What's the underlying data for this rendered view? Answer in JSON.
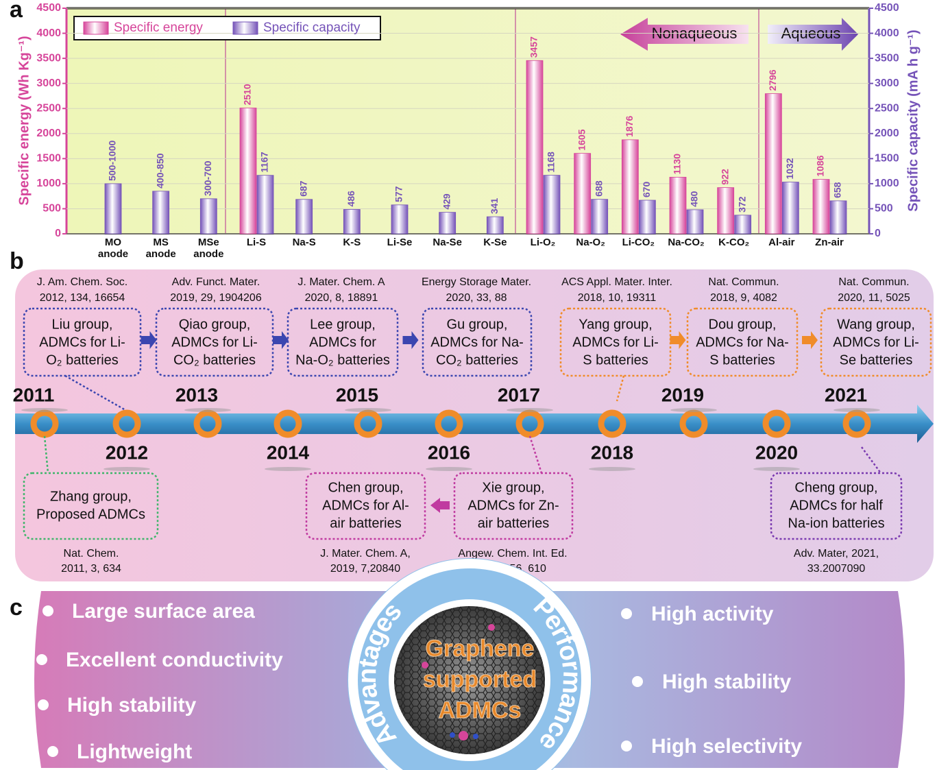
{
  "chart_data": {
    "type": "bar",
    "panel_label": "a",
    "categories": [
      "MO anode",
      "MS anode",
      "MSe anode",
      "Li-S",
      "Na-S",
      "K-S",
      "Li-Se",
      "Na-Se",
      "K-Se",
      "Li-O₂",
      "Na-O₂",
      "Li-CO₂",
      "Na-CO₂",
      "K-CO₂",
      "Al-air",
      "Zn-air"
    ],
    "series": [
      {
        "name": "Specific energy",
        "color": "#d6459a",
        "values": [
          null,
          null,
          null,
          2510,
          null,
          null,
          null,
          null,
          null,
          3457,
          1605,
          1876,
          1130,
          922,
          2796,
          1086
        ]
      },
      {
        "name": "Specific capacity",
        "color": "#7553b8",
        "axis": "y2",
        "values": [
          1000,
          850,
          700,
          1167,
          687,
          486,
          577,
          429,
          341,
          1168,
          688,
          670,
          480,
          372,
          1032,
          658
        ],
        "value_labels": [
          "500-1000",
          "400-850",
          "300-700",
          null,
          null,
          null,
          null,
          null,
          null,
          null,
          null,
          null,
          null,
          null,
          null,
          null
        ]
      }
    ],
    "y_label": "Specific energy (Wh Kg⁻¹)",
    "y2_label": "Specific capacity (mA h g⁻¹)",
    "ylim": [
      0,
      4500
    ],
    "yticks": [
      0,
      500,
      1000,
      1500,
      2000,
      2500,
      3000,
      3500,
      4000,
      4500
    ],
    "y2lim": [
      0,
      4500
    ],
    "y2ticks": [
      0,
      500,
      1000,
      1500,
      2000,
      2500,
      3000,
      3500,
      4000,
      4500
    ],
    "grid": true,
    "legend": "upper left",
    "annotations": [
      "Nonaqueous",
      "Aqueous"
    ]
  },
  "timeline": {
    "panel_label": "b",
    "years": [
      2011,
      2012,
      2013,
      2014,
      2015,
      2016,
      2017,
      2018,
      2019,
      2020,
      2021
    ],
    "top_events": [
      {
        "reference": [
          "J. Am. Chem. Soc.",
          "2012, 134, 16654"
        ],
        "text": [
          "Liu group,",
          "ADMCs for Li-",
          "O₂ batteries"
        ]
      },
      {
        "reference": [
          "Adv. Funct. Mater.",
          "2019, 29, 1904206"
        ],
        "text": [
          "Qiao group,",
          "ADMCs for Li-",
          "CO₂ batteries"
        ]
      },
      {
        "reference": [
          "J. Mater. Chem. A",
          "2020, 8, 18891"
        ],
        "text": [
          "Lee group,",
          "ADMCs for",
          "Na-O₂ batteries"
        ]
      },
      {
        "reference": [
          "Energy Storage Mater.",
          "2020, 33, 88"
        ],
        "text": [
          "Gu group,",
          "ADMCs for Na-",
          "CO₂ batteries"
        ]
      },
      {
        "reference": [
          "ACS Appl. Mater. Inter.",
          "2018, 10, 19311"
        ],
        "text": [
          "Yang group,",
          "ADMCs for Li-",
          "S batteries"
        ]
      },
      {
        "reference": [
          "Nat. Commun.",
          "2018, 9, 4082"
        ],
        "text": [
          "Dou group,",
          "ADMCs for Na-",
          "S batteries"
        ]
      },
      {
        "reference": [
          "Nat. Commun.",
          "2020, 11, 5025"
        ],
        "text": [
          "Wang group,",
          "ADMCs for Li-",
          "Se batteries"
        ]
      }
    ],
    "bottom_events": [
      {
        "reference": [
          "Nat. Chem.",
          "2011, 3, 634"
        ],
        "text": [
          "Zhang group,",
          "Proposed ADMCs"
        ]
      },
      {
        "reference": [
          "J. Mater. Chem. A,",
          "2019, 7,20840"
        ],
        "text": [
          "Chen group,",
          "ADMCs for Al-",
          "air batteries"
        ]
      },
      {
        "reference": [
          "Angew. Chem. Int. Ed.",
          "2017, 56, 610"
        ],
        "text": [
          "Xie group,",
          "ADMCs for Zn-",
          "air batteries"
        ]
      },
      {
        "reference": [
          "Adv. Mater, 2021,",
          "33.2007090"
        ],
        "text": [
          "Cheng group,",
          "ADMCs for half",
          "Na-ion batteries"
        ]
      }
    ]
  },
  "overview": {
    "panel_label": "c",
    "center": {
      "left_arc": "Advantages",
      "right_arc": "Performance",
      "lines": [
        "Graphene",
        "supported",
        "ADMCs"
      ]
    },
    "advantages": [
      "Large surface area",
      "Excellent conductivity",
      "High stability",
      "Lightweight"
    ],
    "performance": [
      "High activity",
      "High stability",
      "High selectivity"
    ]
  }
}
